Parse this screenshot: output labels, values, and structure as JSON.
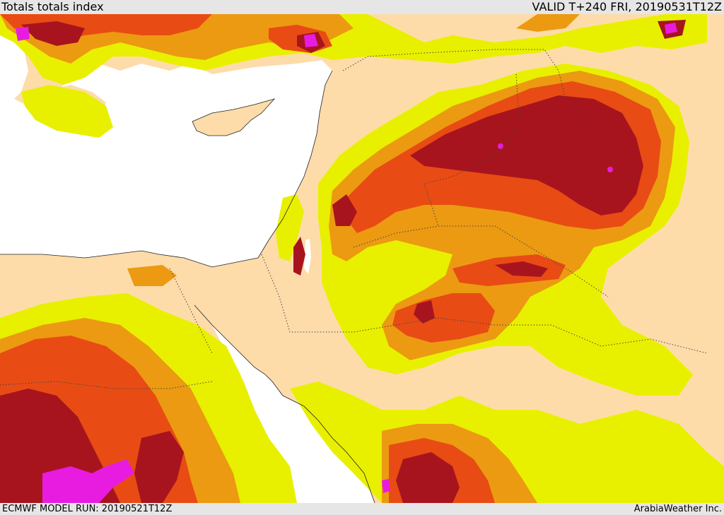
{
  "header": {
    "title": "Totals totals index",
    "valid": "VALID T+240 FRI, 20190531T12Z"
  },
  "footer": {
    "model_run": "ECMWF MODEL RUN: 20190521T12Z",
    "credit": "ArabiaWeather Inc."
  },
  "map": {
    "field": "totals-totals-index",
    "colors": {
      "land_base": "#fddcaa",
      "sea": "#ffffff",
      "level_1": "#e8f000",
      "level_2": "#ec9a12",
      "level_3": "#e84c14",
      "level_4": "#a8141e",
      "level_5": "#e81ce0"
    }
  }
}
